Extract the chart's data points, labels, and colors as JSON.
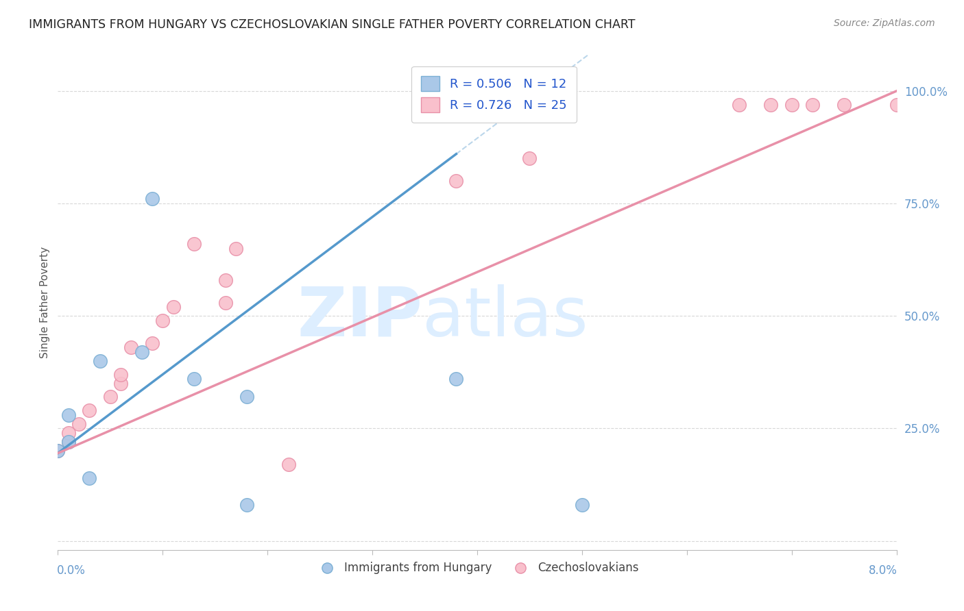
{
  "title": "IMMIGRANTS FROM HUNGARY VS CZECHOSLOVAKIAN SINGLE FATHER POVERTY CORRELATION CHART",
  "source": "Source: ZipAtlas.com",
  "ylabel": "Single Father Poverty",
  "yticks": [
    0.0,
    0.25,
    0.5,
    0.75,
    1.0
  ],
  "ytick_labels": [
    "",
    "25.0%",
    "50.0%",
    "75.0%",
    "100.0%"
  ],
  "xlim": [
    0.0,
    0.08
  ],
  "ylim": [
    -0.02,
    1.08
  ],
  "legend_r1": "R = 0.506   N = 12",
  "legend_r2": "R = 0.726   N = 25",
  "legend_label_1": "Immigrants from Hungary",
  "legend_label_2": "Czechoslovakians",
  "hungary_x": [
    0.0,
    0.001,
    0.001,
    0.003,
    0.004,
    0.008,
    0.009,
    0.013,
    0.018,
    0.018,
    0.038,
    0.05
  ],
  "hungary_y": [
    0.2,
    0.22,
    0.28,
    0.14,
    0.4,
    0.42,
    0.76,
    0.36,
    0.32,
    0.08,
    0.36,
    0.08
  ],
  "czech_x": [
    0.0,
    0.001,
    0.001,
    0.002,
    0.003,
    0.005,
    0.006,
    0.006,
    0.007,
    0.009,
    0.01,
    0.011,
    0.013,
    0.016,
    0.016,
    0.017,
    0.022,
    0.038,
    0.045,
    0.065,
    0.068,
    0.07,
    0.072,
    0.075,
    0.08
  ],
  "czech_y": [
    0.2,
    0.22,
    0.24,
    0.26,
    0.29,
    0.32,
    0.35,
    0.37,
    0.43,
    0.44,
    0.49,
    0.52,
    0.66,
    0.53,
    0.58,
    0.65,
    0.17,
    0.8,
    0.85,
    0.97,
    0.97,
    0.97,
    0.97,
    0.97,
    0.97
  ],
  "hungary_line_x": [
    0.0,
    0.038
  ],
  "hungary_line_y": [
    0.195,
    0.86
  ],
  "czech_line_x": [
    0.0,
    0.08
  ],
  "czech_line_y": [
    0.195,
    1.0
  ],
  "hungary_fill_color": "#aac8e8",
  "hungary_edge_color": "#7bafd4",
  "hungary_line_color": "#5599cc",
  "czech_fill_color": "#f9c0cc",
  "czech_edge_color": "#e890a8",
  "czech_line_color": "#e890a8",
  "background_color": "#ffffff",
  "grid_color": "#d8d8d8",
  "title_color": "#222222",
  "source_color": "#888888",
  "axis_label_color": "#6699cc",
  "watermark_color": "#ddeeff"
}
